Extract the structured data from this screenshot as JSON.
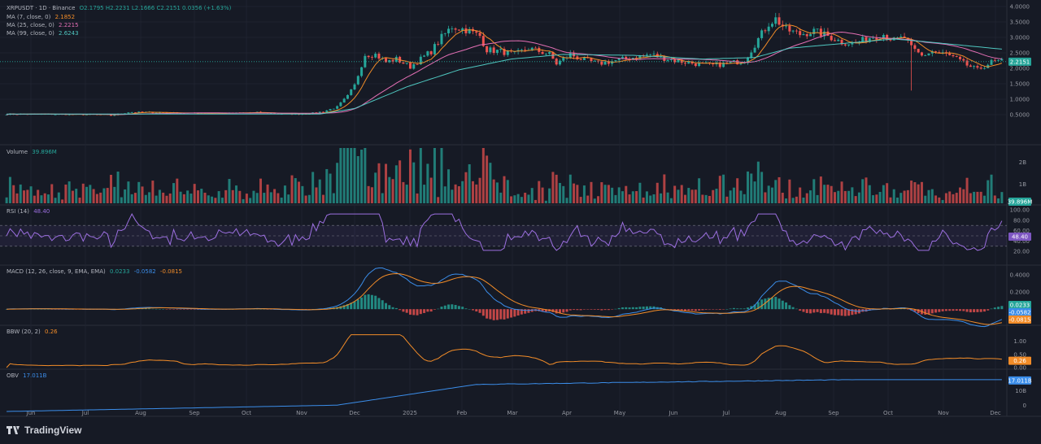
{
  "header": {
    "symbol": "XRPUSDT · 1D · Binance",
    "ohlc": "O2.1795  H2.2231  L2.1666  C2.2151  0.0356 (+1.63%)",
    "ma7_label": "MA (7, close, 0)",
    "ma7_value": "2.1852",
    "ma25_label": "MA (25, close, 0)",
    "ma25_value": "2.2215",
    "ma99_label": "MA (99, close, 0)",
    "ma99_value": "2.6243"
  },
  "volume": {
    "label": "Volume",
    "value": "39.896M",
    "badge": "39.896M"
  },
  "rsi": {
    "label": "RSI (14)",
    "value": "48.40",
    "badge": "48.40"
  },
  "macd": {
    "label": "MACD (12, 26, close, 9, EMA, EMA)",
    "v1": "0.0233",
    "v2": "-0.0582",
    "v3": "-0.0815"
  },
  "bbw": {
    "label": "BBW (20, 2)",
    "value": "0.26",
    "badge": "0.26"
  },
  "obv": {
    "label": "OBV",
    "value": "17.011B",
    "badge": "17.011B"
  },
  "price_badge": "2.2151",
  "brand": "TradingView",
  "colors": {
    "up": "#26a69a",
    "down": "#ef5350",
    "ma7": "#f28c28",
    "ma25": "#e36fb4",
    "ma99": "#4fc7c0",
    "rsi": "#9c6fe0",
    "obv": "#3b8de9",
    "bbw": "#f28c28",
    "macd": "#3b8de9",
    "signal": "#f28c28"
  },
  "chart_data": {
    "type": "line",
    "symbol": "XRPUSDT",
    "x_months": [
      "Jun",
      "Jul",
      "Aug",
      "Sep",
      "Oct",
      "Nov",
      "Dec",
      "2025",
      "Feb",
      "Mar",
      "Apr",
      "May",
      "Jun",
      "Jul",
      "Aug",
      "Sep",
      "Oct",
      "Nov",
      "Dec"
    ],
    "price_ticks": [
      "4.0000",
      "3.5000",
      "3.0000",
      "2.5000",
      "2.0000",
      "1.5000",
      "1.0000",
      "0.5000"
    ],
    "price_ylim": [
      0,
      4
    ],
    "price_path": [
      [
        0,
        0.52
      ],
      [
        28,
        0.5
      ],
      [
        30,
        0.47
      ],
      [
        35,
        0.58
      ],
      [
        45,
        0.57
      ],
      [
        55,
        0.54
      ],
      [
        65,
        0.55
      ],
      [
        72,
        0.57
      ],
      [
        78,
        0.53
      ],
      [
        84,
        0.52
      ],
      [
        88,
        0.55
      ],
      [
        91,
        0.6
      ],
      [
        95,
        0.75
      ],
      [
        98,
        1.1
      ],
      [
        100,
        1.45
      ],
      [
        103,
        2.45
      ],
      [
        106,
        2.45
      ],
      [
        109,
        2.2
      ],
      [
        112,
        2.3
      ],
      [
        116,
        2.05
      ],
      [
        122,
        2.55
      ],
      [
        125,
        3.0
      ],
      [
        128,
        3.35
      ],
      [
        132,
        3.25
      ],
      [
        136,
        3.05
      ],
      [
        138,
        2.6
      ],
      [
        142,
        2.55
      ],
      [
        146,
        2.45
      ],
      [
        150,
        2.65
      ],
      [
        153,
        2.55
      ],
      [
        156,
        2.45
      ],
      [
        158,
        2.15
      ],
      [
        162,
        2.45
      ],
      [
        165,
        2.3
      ],
      [
        170,
        2.15
      ],
      [
        175,
        2.25
      ],
      [
        180,
        2.35
      ],
      [
        185,
        2.45
      ],
      [
        188,
        2.35
      ],
      [
        192,
        2.25
      ],
      [
        198,
        2.15
      ],
      [
        203,
        2.1
      ],
      [
        207,
        2.15
      ],
      [
        212,
        2.25
      ],
      [
        216,
        2.95
      ],
      [
        219,
        3.45
      ],
      [
        221,
        3.6
      ],
      [
        224,
        3.25
      ],
      [
        228,
        3.1
      ],
      [
        232,
        3.2
      ],
      [
        236,
        3.05
      ],
      [
        240,
        2.85
      ],
      [
        244,
        2.8
      ],
      [
        248,
        3.0
      ],
      [
        252,
        3.1
      ],
      [
        255,
        2.9
      ],
      [
        258,
        3.0
      ],
      [
        260,
        2.65
      ],
      [
        263,
        2.4
      ],
      [
        266,
        2.55
      ],
      [
        270,
        2.45
      ],
      [
        273,
        2.3
      ],
      [
        276,
        2.1
      ],
      [
        279,
        1.95
      ],
      [
        283,
        2.2
      ],
      [
        286,
        2.22
      ]
    ],
    "ma99_path": [
      [
        0,
        0.52
      ],
      [
        90,
        0.52
      ],
      [
        100,
        0.7
      ],
      [
        115,
        1.4
      ],
      [
        130,
        1.95
      ],
      [
        145,
        2.3
      ],
      [
        160,
        2.45
      ],
      [
        180,
        2.42
      ],
      [
        200,
        2.3
      ],
      [
        215,
        2.35
      ],
      [
        225,
        2.65
      ],
      [
        245,
        2.85
      ],
      [
        255,
        2.95
      ],
      [
        265,
        2.85
      ],
      [
        286,
        2.62
      ]
    ],
    "volume_ticks": [
      "2B",
      "1B"
    ],
    "rsi_ticks": [
      "100.00",
      "80.00",
      "60.00",
      "40.00",
      "20.00"
    ],
    "rsi_bands": [
      70,
      50,
      30
    ],
    "macd_ticks": [
      "0.4000",
      "0.2000"
    ],
    "bbw_ticks": [
      "1.00",
      "0.50",
      "0.00"
    ],
    "obv_ticks": [
      "10B",
      "0"
    ],
    "last": {
      "price": 2.2151,
      "ma7": 2.1852,
      "ma25": 2.2215,
      "ma99": 2.6243,
      "rsi": 48.4,
      "macd": 0.0233,
      "macd_line": -0.0582,
      "macd_signal": -0.0815,
      "bbw": 0.26,
      "obv": "17.011B",
      "volume": "39.896M"
    }
  }
}
